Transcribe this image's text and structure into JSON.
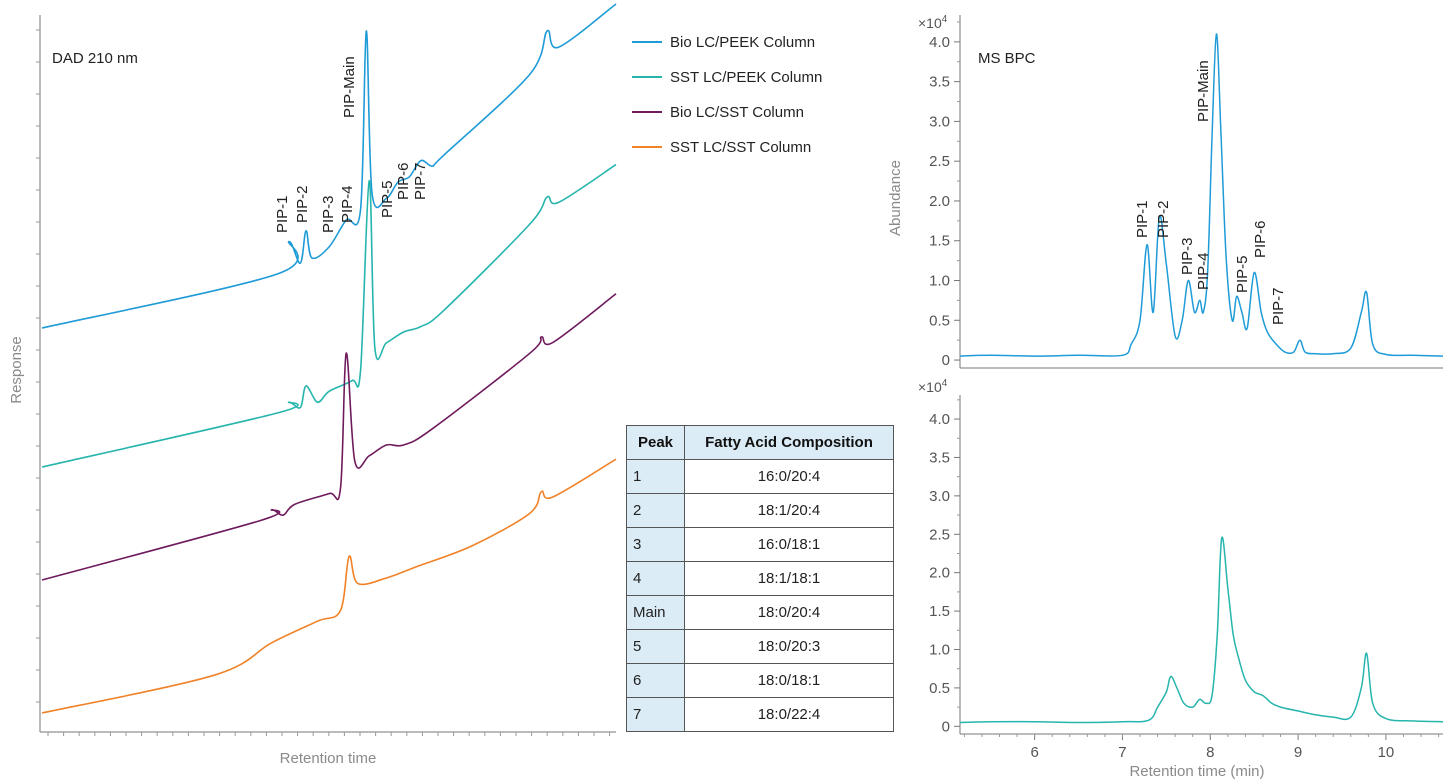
{
  "left_panel": {
    "annotation": "DAD 210 nm",
    "xlabel": "Retention time",
    "ylabel": "Response",
    "legend": [
      {
        "label": "Bio LC/PEEK Column",
        "color": "#1f9bd7"
      },
      {
        "label": "SST LC/PEEK Column",
        "color": "#26b5ad"
      },
      {
        "label": "Bio LC/SST Column",
        "color": "#6e1a5c"
      },
      {
        "label": "SST LC/SST Column",
        "color": "#f08228"
      }
    ],
    "peak_labels": [
      "PIP-1",
      "PIP-2",
      "PIP-3",
      "PIP-4",
      "PIP-Main",
      "PIP-5",
      "PIP-6",
      "PIP-7"
    ]
  },
  "table": {
    "headers": [
      "Peak",
      "Fatty Acid Composition"
    ],
    "rows": [
      [
        "1",
        "16:0/20:4"
      ],
      [
        "2",
        "18:1/20:4"
      ],
      [
        "3",
        "16:0/18:1"
      ],
      [
        "4",
        "18:1/18:1"
      ],
      [
        "Main",
        "18:0/20:4"
      ],
      [
        "5",
        "18:0/20:3"
      ],
      [
        "6",
        "18:0/18:1"
      ],
      [
        "7",
        "18:0/22:4"
      ]
    ]
  },
  "right_panels": {
    "xlabel": "Retention time (min)",
    "ylabel": "Abundance",
    "multiplier": "×10",
    "multiplier_exp": "4",
    "top_annotation": "MS BPC",
    "peak_labels": [
      "PIP-1",
      "PIP-2",
      "PIP-3",
      "PIP-4",
      "PIP-Main",
      "PIP-5",
      "PIP-6",
      "PIP-7"
    ]
  },
  "chart_data": [
    {
      "type": "line",
      "title": "",
      "annotation": "DAD 210 nm",
      "xlabel": "Retention time",
      "ylabel": "Response",
      "note": "Unscaled axes (no tick labels); traces are vertically offset chromatograms.",
      "series": [
        {
          "name": "Bio LC/PEEK Column",
          "color": "#1f9bd7",
          "points": [
            [
              0,
              0
            ],
            [
              0.41,
              0.1
            ],
            [
              0.43,
              0.16
            ],
            [
              0.45,
              0.12
            ],
            [
              0.46,
              0.18
            ],
            [
              0.47,
              0.13
            ],
            [
              0.5,
              0.15
            ],
            [
              0.53,
              0.2
            ],
            [
              0.555,
              0.22
            ],
            [
              0.565,
              0.55
            ],
            [
              0.575,
              0.25
            ],
            [
              0.6,
              0.24
            ],
            [
              0.62,
              0.27
            ],
            [
              0.64,
              0.28
            ],
            [
              0.66,
              0.31
            ],
            [
              0.68,
              0.3
            ],
            [
              0.7,
              0.32
            ],
            [
              0.85,
              0.47
            ],
            [
              0.88,
              0.55
            ],
            [
              0.9,
              0.52
            ],
            [
              1,
              0.6
            ]
          ]
        },
        {
          "name": "SST LC/PEEK Column",
          "color": "#26b5ad",
          "points": [
            [
              0,
              0
            ],
            [
              0.41,
              0.1
            ],
            [
              0.43,
              0.12
            ],
            [
              0.45,
              0.11
            ],
            [
              0.46,
              0.15
            ],
            [
              0.48,
              0.12
            ],
            [
              0.5,
              0.14
            ],
            [
              0.54,
              0.16
            ],
            [
              0.555,
              0.18
            ],
            [
              0.57,
              0.53
            ],
            [
              0.58,
              0.22
            ],
            [
              0.6,
              0.23
            ],
            [
              0.63,
              0.25
            ],
            [
              0.66,
              0.26
            ],
            [
              0.7,
              0.29
            ],
            [
              0.85,
              0.45
            ],
            [
              0.88,
              0.5
            ],
            [
              0.9,
              0.49
            ],
            [
              1,
              0.56
            ]
          ]
        },
        {
          "name": "Bio LC/SST Column",
          "color": "#6e1a5c",
          "points": [
            [
              0,
              0
            ],
            [
              0.38,
              0.11
            ],
            [
              0.4,
              0.13
            ],
            [
              0.42,
              0.12
            ],
            [
              0.44,
              0.14
            ],
            [
              0.5,
              0.16
            ],
            [
              0.52,
              0.17
            ],
            [
              0.53,
              0.42
            ],
            [
              0.545,
              0.22
            ],
            [
              0.57,
              0.23
            ],
            [
              0.6,
              0.25
            ],
            [
              0.63,
              0.25
            ],
            [
              0.68,
              0.28
            ],
            [
              0.85,
              0.42
            ],
            [
              0.87,
              0.45
            ],
            [
              0.89,
              0.44
            ],
            [
              1,
              0.53
            ]
          ]
        },
        {
          "name": "SST LC/SST Column",
          "color": "#f08228",
          "points": [
            [
              0,
              0
            ],
            [
              0.3,
              0.07
            ],
            [
              0.4,
              0.13
            ],
            [
              0.48,
              0.17
            ],
            [
              0.52,
              0.19
            ],
            [
              0.535,
              0.29
            ],
            [
              0.55,
              0.24
            ],
            [
              0.6,
              0.25
            ],
            [
              0.65,
              0.27
            ],
            [
              0.75,
              0.31
            ],
            [
              0.85,
              0.37
            ],
            [
              0.87,
              0.41
            ],
            [
              0.89,
              0.4
            ],
            [
              1,
              0.47
            ]
          ]
        }
      ]
    },
    {
      "type": "line",
      "title": "",
      "annotation": "MS BPC",
      "xlabel": "Retention time (min)",
      "ylabel": "Abundance",
      "y_multiplier": "×10^4",
      "xlim": [
        5.15,
        10.65
      ],
      "ylim": [
        -0.1,
        4.3
      ],
      "xticks": [
        6,
        7,
        8,
        9,
        10
      ],
      "yticks": [
        0,
        0.5,
        1.0,
        1.5,
        2.0,
        2.5,
        3.0,
        3.5,
        4.0
      ],
      "ytick_labels": [
        "0",
        "0.5",
        "1.0",
        "1.5",
        "2.0",
        "2.5",
        "3.0",
        "3.5",
        "4.0"
      ],
      "series": [
        {
          "name": "",
          "color": "#1f9bd7",
          "x": [
            5.15,
            5.5,
            6,
            6.5,
            7,
            7.1,
            7.2,
            7.28,
            7.35,
            7.42,
            7.5,
            7.6,
            7.68,
            7.75,
            7.82,
            7.88,
            7.92,
            7.97,
            8.02,
            8.07,
            8.12,
            8.18,
            8.25,
            8.3,
            8.36,
            8.42,
            8.5,
            8.58,
            8.65,
            8.75,
            8.85,
            8.95,
            9.02,
            9.08,
            9.2,
            9.4,
            9.6,
            9.72,
            9.78,
            9.85,
            10,
            10.3,
            10.65
          ],
          "y": [
            0.05,
            0.06,
            0.05,
            0.06,
            0.06,
            0.2,
            0.5,
            1.45,
            0.6,
            1.8,
            1.2,
            0.3,
            0.5,
            1.0,
            0.6,
            0.75,
            0.6,
            1.1,
            2.8,
            4.1,
            2.9,
            1.3,
            0.5,
            0.8,
            0.6,
            0.4,
            1.1,
            0.6,
            0.35,
            0.2,
            0.1,
            0.1,
            0.25,
            0.1,
            0.08,
            0.08,
            0.15,
            0.6,
            0.85,
            0.2,
            0.07,
            0.06,
            0.05
          ]
        }
      ]
    },
    {
      "type": "line",
      "title": "",
      "xlabel": "Retention time (min)",
      "ylabel": "Abundance",
      "y_multiplier": "×10^4",
      "xlim": [
        5.15,
        10.65
      ],
      "ylim": [
        -0.1,
        4.3
      ],
      "xticks": [
        6,
        7,
        8,
        9,
        10
      ],
      "yticks": [
        0,
        0.5,
        1.0,
        1.5,
        2.0,
        2.5,
        3.0,
        3.5,
        4.0
      ],
      "ytick_labels": [
        "0",
        "0.5",
        "1.0",
        "1.5",
        "2.0",
        "2.5",
        "3.0",
        "3.5",
        "4.0"
      ],
      "series": [
        {
          "name": "",
          "color": "#26b5ad",
          "x": [
            5.15,
            5.5,
            6,
            6.5,
            7,
            7.3,
            7.4,
            7.5,
            7.55,
            7.62,
            7.7,
            7.8,
            7.88,
            7.95,
            8.02,
            8.08,
            8.13,
            8.2,
            8.26,
            8.32,
            8.4,
            8.5,
            8.6,
            8.7,
            8.8,
            9,
            9.2,
            9.4,
            9.6,
            9.72,
            9.78,
            9.85,
            10,
            10.3,
            10.65
          ],
          "y": [
            0.05,
            0.06,
            0.06,
            0.05,
            0.06,
            0.08,
            0.25,
            0.45,
            0.65,
            0.5,
            0.3,
            0.25,
            0.35,
            0.3,
            0.4,
            1.2,
            2.45,
            1.8,
            1.2,
            0.9,
            0.6,
            0.45,
            0.4,
            0.3,
            0.25,
            0.2,
            0.15,
            0.12,
            0.12,
            0.5,
            0.95,
            0.3,
            0.1,
            0.07,
            0.06
          ]
        }
      ]
    }
  ]
}
